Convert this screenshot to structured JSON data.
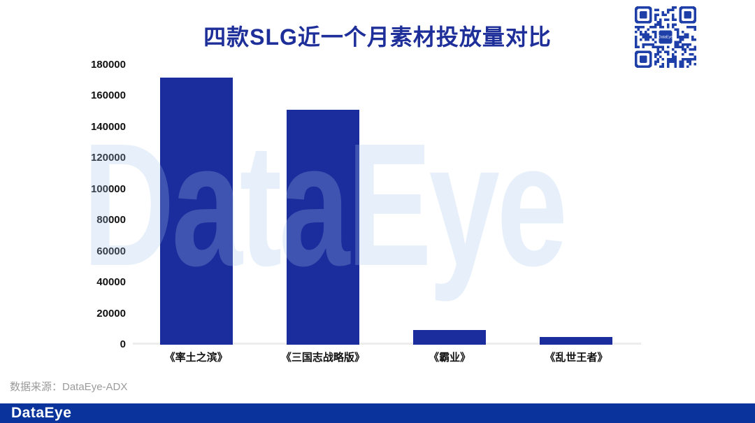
{
  "title": "四款SLG近一个月素材投放量对比",
  "watermark_text": "DataEye",
  "source_note": "数据来源：DataEye-ADX",
  "footer": {
    "logo_text": "DataEye"
  },
  "qr": {
    "center_label": "DataEye"
  },
  "colors": {
    "bar": "#1b2d9c",
    "title": "#1e2f9a",
    "footer_bar": "#0a339c",
    "axis_line": "#ededed",
    "source_text": "#9a9a9a",
    "watermark": "rgba(162,196,234,0.26)",
    "qr_blue": "#1e3fa8"
  },
  "chart_data": {
    "type": "bar",
    "title": "四款SLG近一个月素材投放量对比",
    "categories": [
      "《率土之滨》",
      "《三国志战略版》",
      "《霸业》",
      "《乱世王者》"
    ],
    "values": [
      172000,
      151000,
      9500,
      5000
    ],
    "xlabel": "",
    "ylabel": "",
    "ylim": [
      0,
      180000
    ],
    "yticks": [
      0,
      20000,
      40000,
      60000,
      80000,
      100000,
      120000,
      140000,
      160000,
      180000
    ],
    "grid": false,
    "legend_position": "none",
    "bar_color": "#1b2d9c"
  }
}
